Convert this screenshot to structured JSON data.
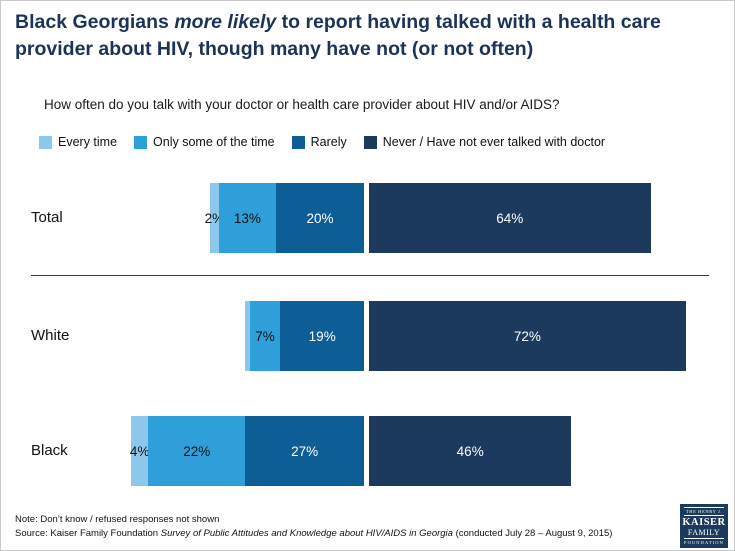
{
  "title": {
    "prefix": "Black Georgians ",
    "italic": "more likely",
    "suffix": " to report having talked with a health care provider about HIV, though many have not (or not often)"
  },
  "question": "How often do you talk with your doctor or health care provider about HIV and/or AIDS?",
  "colors": {
    "title_navy": "#1B3358",
    "every_time": "#8CC8EC",
    "only_some": "#2F9FDA",
    "rarely": "#0D5E96",
    "never": "#1B3A5E"
  },
  "legend": [
    {
      "label": "Every time",
      "color": "#8CC8EC"
    },
    {
      "label": "Only some of the time",
      "color": "#2F9FDA"
    },
    {
      "label": "Rarely",
      "color": "#0D5E96"
    },
    {
      "label": "Never / Have not ever talked with doctor",
      "color": "#1B3A5E"
    }
  ],
  "chart_data": {
    "type": "bar",
    "subtype": "horizontal-stacked",
    "title": "How often do you talk with your doctor or health care provider about HIV and/or AIDS?",
    "categories": [
      "Total",
      "White",
      "Black"
    ],
    "series": [
      {
        "name": "Every time",
        "color": "#8CC8EC",
        "values": [
          2,
          1,
          4
        ],
        "labels": [
          "2%",
          "",
          "4%"
        ]
      },
      {
        "name": "Only some of the time",
        "color": "#2F9FDA",
        "values": [
          13,
          7,
          22
        ],
        "labels": [
          "13%",
          "7%",
          "22%"
        ]
      },
      {
        "name": "Rarely",
        "color": "#0D5E96",
        "values": [
          20,
          19,
          27
        ],
        "labels": [
          "20%",
          "19%",
          "27%"
        ]
      },
      {
        "name": "Never / Have not ever talked with doctor",
        "color": "#1B3A5E",
        "values": [
          64,
          72,
          46
        ],
        "labels": [
          "64%",
          "72%",
          "46%"
        ]
      }
    ],
    "unit": "percent",
    "legend_position": "top",
    "grid": false
  },
  "note": "Note: Don’t know / refused responses not shown",
  "source": {
    "prefix": "Source: Kaiser Family Foundation ",
    "italic": "Survey of Public Attitudes and Knowledge about HIV/AIDS in Georgia",
    "suffix": " (conducted July 28 – August 9, 2015)"
  },
  "logo": {
    "line1": "THE HENRY J.",
    "line2": "KAISER",
    "line3": "FAMILY",
    "line4": "FOUNDATION"
  }
}
